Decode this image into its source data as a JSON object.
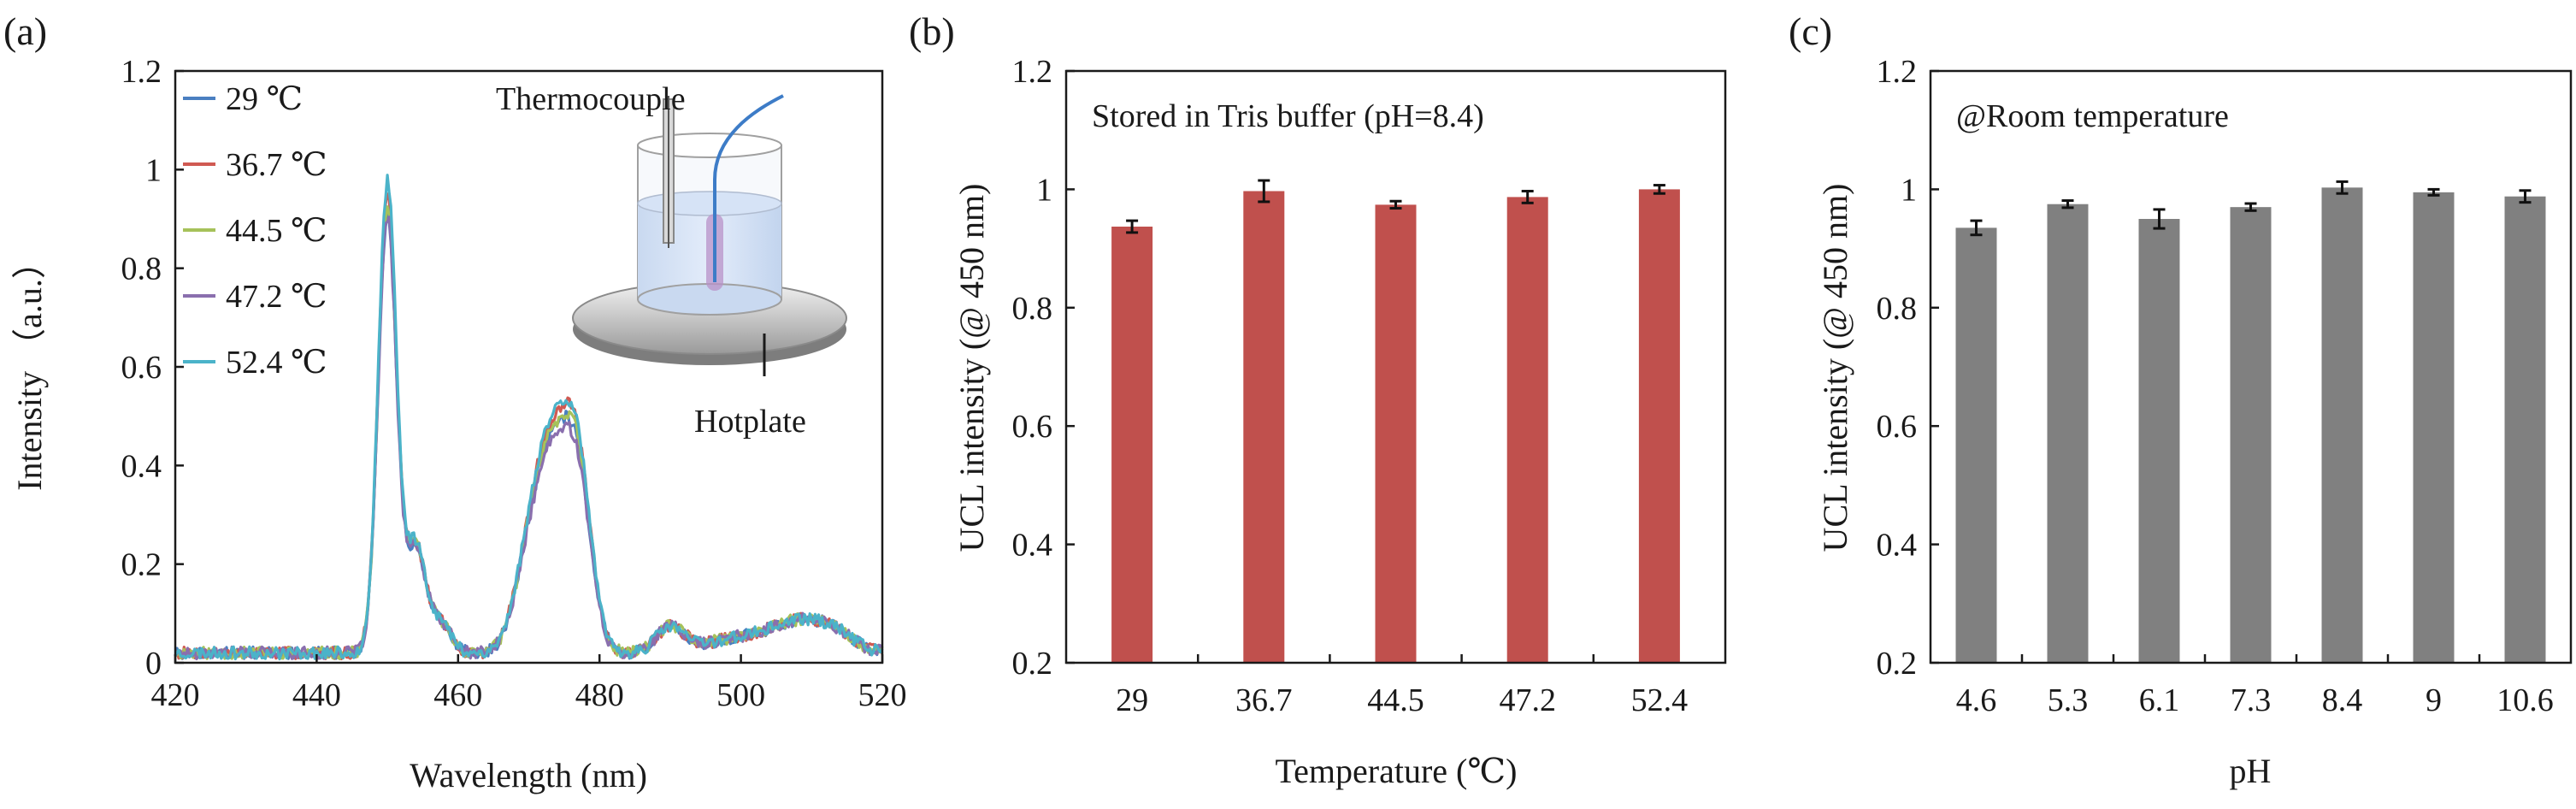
{
  "chart_data": [
    {
      "panel_label": "(a)",
      "type": "line",
      "title": "",
      "xlabel": "Wavelength (nm)",
      "ylabel": "Intensity （a.u.）",
      "xlim": [
        420,
        520
      ],
      "ylim": [
        0,
        1.2
      ],
      "xticks": [
        "420",
        "440",
        "460",
        "480",
        "500",
        "520"
      ],
      "yticks": [
        "0",
        "0.2",
        "0.4",
        "0.6",
        "0.8",
        "1",
        "1.2"
      ],
      "legend_position": "top-left",
      "inset": {
        "thermocouple_label": "Thermocouple",
        "hotplate_label": "Hotplate"
      },
      "series": [
        {
          "name": "29 ℃",
          "color": "#4a7fc1",
          "peak1": 0.94,
          "peak2": 0.51,
          "noise_seed": 3
        },
        {
          "name": "36.7 ℃",
          "color": "#d05a52",
          "peak1": 0.97,
          "peak2": 0.54,
          "noise_seed": 7
        },
        {
          "name": "44.5 ℃",
          "color": "#a6c25a",
          "peak1": 0.95,
          "peak2": 0.52,
          "noise_seed": 11
        },
        {
          "name": "47.2 ℃",
          "color": "#8a6fae",
          "peak1": 0.93,
          "peak2": 0.49,
          "noise_seed": 17
        },
        {
          "name": "52.4 ℃",
          "color": "#4bb3c9",
          "peak1": 1.0,
          "peak2": 0.55,
          "noise_seed": 23
        }
      ]
    },
    {
      "panel_label": "(b)",
      "type": "bar",
      "annotation": "Stored in Tris buffer (pH=8.4)",
      "xlabel": "Temperature (℃)",
      "ylabel": "UCL intensity (@ 450 nm)",
      "ylim": [
        0.2,
        1.2
      ],
      "yticks": [
        "0.2",
        "0.4",
        "0.6",
        "0.8",
        "1",
        "1.2"
      ],
      "color": "#c0504d",
      "categories": [
        "29",
        "36.7",
        "44.5",
        "47.2",
        "52.4"
      ],
      "values": [
        0.937,
        0.997,
        0.974,
        0.987,
        1.0
      ],
      "errors": [
        0.01,
        0.018,
        0.006,
        0.01,
        0.007
      ]
    },
    {
      "panel_label": "(c)",
      "type": "bar",
      "annotation": "@Room temperature",
      "xlabel": "pH",
      "ylabel": "UCL intensity (@ 450 nm)",
      "ylim": [
        0.2,
        1.2
      ],
      "yticks": [
        "0.2",
        "0.4",
        "0.6",
        "0.8",
        "1",
        "1.2"
      ],
      "color": "#808080",
      "categories": [
        "4.6",
        "5.3",
        "6.1",
        "7.3",
        "8.4",
        "9",
        "10.6"
      ],
      "values": [
        0.935,
        0.975,
        0.95,
        0.97,
        1.003,
        0.995,
        0.988
      ],
      "errors": [
        0.012,
        0.006,
        0.016,
        0.006,
        0.01,
        0.005,
        0.01
      ]
    }
  ]
}
